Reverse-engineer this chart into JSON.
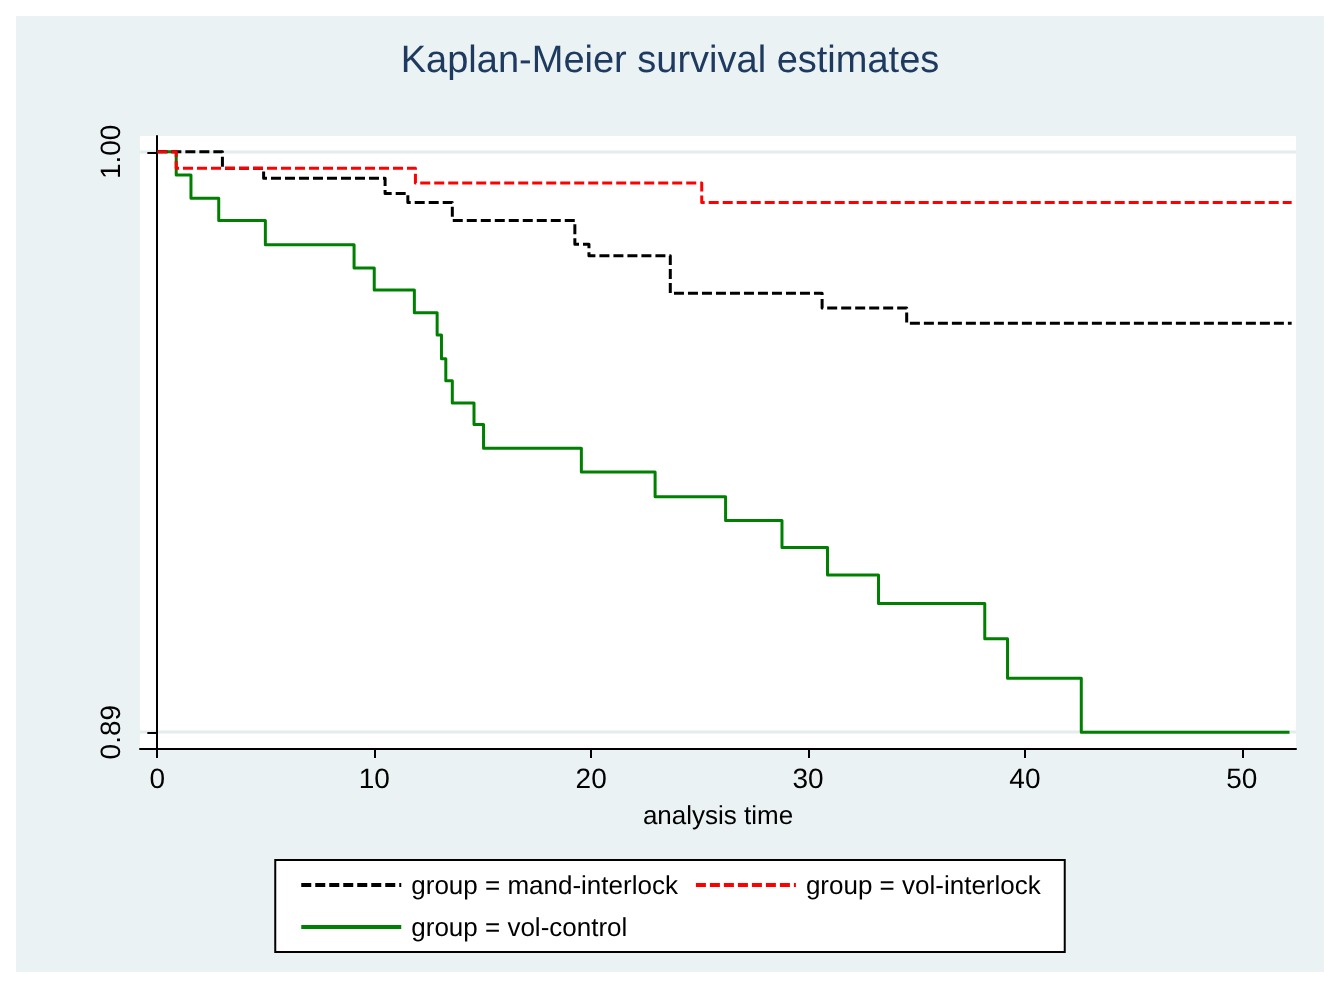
{
  "chart_data": {
    "type": "step",
    "title": "Kaplan-Meier survival estimates",
    "xlabel": "analysis time",
    "xlim": [
      -0.8,
      52.5
    ],
    "xticks": [
      0,
      10,
      20,
      30,
      40,
      50
    ],
    "ylim": [
      0.887,
      1.003
    ],
    "yticks": [
      {
        "value": 0.89,
        "label": "0.89"
      },
      {
        "value": 1,
        "label": "1.00"
      }
    ],
    "grid": "y",
    "legend": "bottom",
    "series": [
      {
        "name": "group = mand-interlock",
        "color": "#000000",
        "line_style": "dashed",
        "x": [
          0,
          3.0,
          4.9,
          10.5,
          11.55,
          13.6,
          19.25,
          19.9,
          23.65,
          30.65,
          34.55,
          52.3
        ],
        "values": [
          1,
          0.9969,
          0.995,
          0.9921,
          0.9904,
          0.987,
          0.9825,
          0.9803,
          0.9732,
          0.9704,
          0.9675,
          0.9675
        ]
      },
      {
        "name": "group = vol-interlock",
        "color": "#ff0000",
        "line_style": "dashed",
        "x": [
          0,
          0.87,
          11.9,
          25.1,
          52.3
        ],
        "values": [
          1,
          0.9969,
          0.9941,
          0.9904,
          0.9904
        ]
      },
      {
        "name": "group = vol-control",
        "color": "#008000",
        "line_style": "solid",
        "x": [
          0,
          0.87,
          1.55,
          2.83,
          4.98,
          9.07,
          10.0,
          11.85,
          12.9,
          13.1,
          13.3,
          13.6,
          14.6,
          15.04,
          19.55,
          22.95,
          26.2,
          28.8,
          30.9,
          33.25,
          38.15,
          39.2,
          42.6,
          52.2
        ],
        "values": [
          1,
          0.9956,
          0.9912,
          0.987,
          0.9824,
          0.978,
          0.9738,
          0.9695,
          0.9653,
          0.9608,
          0.9566,
          0.9524,
          0.9483,
          0.9438,
          0.9393,
          0.9346,
          0.9301,
          0.925,
          0.9198,
          0.9144,
          0.9077,
          0.9002,
          0.89,
          0.89
        ]
      }
    ]
  }
}
